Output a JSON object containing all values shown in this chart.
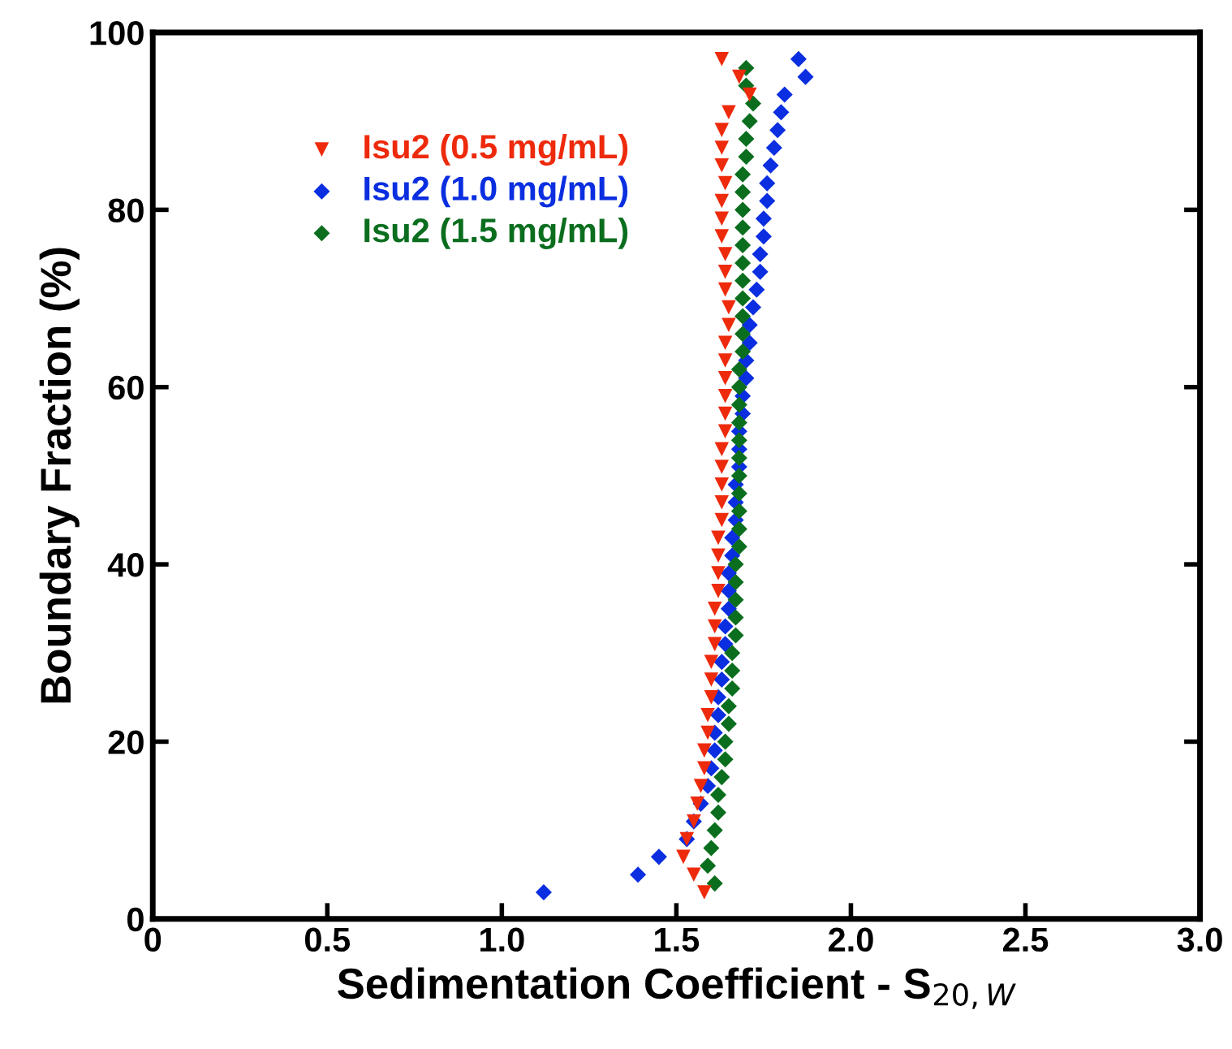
{
  "chart_data": {
    "type": "scatter",
    "xlabel": "Sedimentation Coefficient - S$_{20,W}$",
    "ylabel": "Boundary Fraction (%)",
    "xlim": [
      0,
      3.0
    ],
    "ylim": [
      0,
      100
    ],
    "xticks": [
      0,
      0.5,
      {
        "value": 1,
        "label": "1.0"
      },
      1.5,
      {
        "value": 2,
        "label": "2.0"
      },
      2.5,
      {
        "value": 3,
        "label": "3.0"
      }
    ],
    "yticks": [
      0,
      20,
      40,
      60,
      80,
      100
    ],
    "grid": false,
    "legend": "top left",
    "series": [
      {
        "name": "Isu2 (0.5 mg/mL)",
        "color": "#ee2a0c",
        "marker": "triangle",
        "x": [
          1.58,
          1.55,
          1.52,
          1.53,
          1.55,
          1.56,
          1.57,
          1.58,
          1.58,
          1.59,
          1.59,
          1.6,
          1.6,
          1.6,
          1.61,
          1.61,
          1.61,
          1.62,
          1.62,
          1.62,
          1.62,
          1.63,
          1.63,
          1.63,
          1.63,
          1.63,
          1.64,
          1.64,
          1.64,
          1.64,
          1.64,
          1.64,
          1.65,
          1.65,
          1.64,
          1.64,
          1.64,
          1.63,
          1.63,
          1.63,
          1.64,
          1.63,
          1.63,
          1.63,
          1.65,
          1.71,
          1.68,
          1.63
        ],
        "values": [
          3,
          5,
          7,
          9,
          11,
          13,
          15,
          17,
          19,
          21,
          23,
          25,
          27,
          29,
          31,
          33,
          35,
          37,
          39,
          41,
          43,
          45,
          47,
          49,
          51,
          53,
          55,
          57,
          59,
          61,
          63,
          65,
          67,
          69,
          71,
          73,
          75,
          77,
          79,
          81,
          83,
          85,
          87,
          89,
          91,
          93,
          95,
          97
        ]
      },
      {
        "name": "Isu2 (1.0 mg/mL)",
        "color": "#0a2ee0",
        "marker": "diamond",
        "x": [
          1.12,
          1.39,
          1.45,
          1.53,
          1.55,
          1.57,
          1.59,
          1.6,
          1.61,
          1.61,
          1.62,
          1.62,
          1.63,
          1.63,
          1.64,
          1.64,
          1.65,
          1.65,
          1.65,
          1.66,
          1.66,
          1.67,
          1.67,
          1.67,
          1.68,
          1.68,
          1.68,
          1.69,
          1.69,
          1.7,
          1.7,
          1.71,
          1.71,
          1.72,
          1.73,
          1.74,
          1.74,
          1.75,
          1.75,
          1.76,
          1.76,
          1.77,
          1.78,
          1.79,
          1.8,
          1.81,
          1.87,
          1.85
        ],
        "values": [
          3,
          5,
          7,
          9,
          11,
          13,
          15,
          17,
          19,
          21,
          23,
          25,
          27,
          29,
          31,
          33,
          35,
          37,
          39,
          41,
          43,
          45,
          47,
          49,
          51,
          53,
          55,
          57,
          59,
          61,
          63,
          65,
          67,
          69,
          71,
          73,
          75,
          77,
          79,
          81,
          83,
          85,
          87,
          89,
          91,
          93,
          95,
          97
        ]
      },
      {
        "name": "Isu2 (1.5 mg/mL)",
        "color": "#0b6e1e",
        "marker": "diamond",
        "x": [
          1.61,
          1.59,
          1.6,
          1.61,
          1.62,
          1.62,
          1.63,
          1.64,
          1.64,
          1.65,
          1.65,
          1.66,
          1.66,
          1.66,
          1.67,
          1.67,
          1.67,
          1.67,
          1.67,
          1.68,
          1.68,
          1.68,
          1.68,
          1.68,
          1.68,
          1.68,
          1.68,
          1.68,
          1.68,
          1.68,
          1.69,
          1.69,
          1.69,
          1.69,
          1.69,
          1.69,
          1.69,
          1.69,
          1.69,
          1.69,
          1.69,
          1.7,
          1.7,
          1.71,
          1.72,
          1.7,
          1.7
        ],
        "values": [
          4,
          6,
          8,
          10,
          12,
          14,
          16,
          18,
          20,
          22,
          24,
          26,
          28,
          30,
          32,
          34,
          36,
          38,
          40,
          42,
          44,
          46,
          48,
          50,
          52,
          54,
          56,
          58,
          60,
          62,
          64,
          66,
          68,
          70,
          72,
          74,
          76,
          78,
          80,
          82,
          84,
          86,
          88,
          90,
          92,
          94,
          96
        ]
      }
    ]
  }
}
